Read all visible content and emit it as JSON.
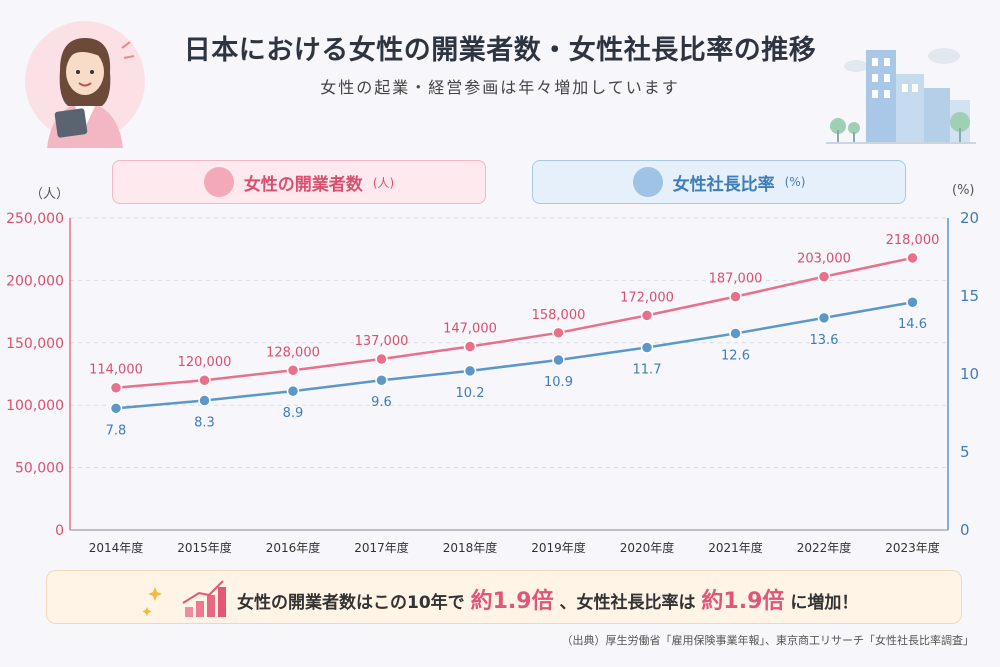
{
  "header": {
    "title": "日本における女性の開業者数・女性社長比率の推移",
    "subtitle": "女性の起業・経営参画は年々増加しています"
  },
  "legend": {
    "left": {
      "label": "女性の開業者数",
      "unit": "(人)"
    },
    "right": {
      "label": "女性社長比率",
      "unit": "(%)"
    }
  },
  "axis": {
    "left_unit": "（人）",
    "right_unit": "(%)"
  },
  "colors": {
    "pink": "#e8708a",
    "blue": "#5b97c9",
    "pink_text": "#d9506e",
    "blue_text": "#3f7db8"
  },
  "chart_data": {
    "type": "line",
    "categories": [
      "2014年度",
      "2015年度",
      "2016年度",
      "2017年度",
      "2018年度",
      "2019年度",
      "2020年度",
      "2021年度",
      "2022年度",
      "2023年度"
    ],
    "series": [
      {
        "name": "女性の開業者数",
        "axis": "left",
        "values": [
          114000,
          120000,
          128000,
          137000,
          147000,
          158000,
          172000,
          187000,
          203000,
          218000
        ],
        "labels": [
          "114,000",
          "120,000",
          "128,000",
          "137,000",
          "147,000",
          "158,000",
          "172,000",
          "187,000",
          "203,000",
          "218,000"
        ]
      },
      {
        "name": "女性社長比率",
        "axis": "right",
        "values": [
          7.8,
          8.3,
          8.9,
          9.6,
          10.2,
          10.9,
          11.7,
          12.6,
          13.6,
          14.6
        ],
        "labels": [
          "7.8",
          "8.3",
          "8.9",
          "9.6",
          "10.2",
          "10.9",
          "11.7",
          "12.6",
          "13.6",
          "14.6"
        ]
      }
    ],
    "y_left": {
      "range": [
        0,
        250000
      ],
      "ticks": [
        0,
        50000,
        100000,
        150000,
        200000,
        250000
      ],
      "tick_labels": [
        "0",
        "50,000",
        "100,000",
        "150,000",
        "200,000",
        "250,000"
      ]
    },
    "y_right": {
      "range": [
        0,
        20
      ],
      "ticks": [
        0,
        5,
        10,
        15,
        20
      ],
      "tick_labels": [
        "0",
        "5",
        "10",
        "15",
        "20"
      ]
    },
    "grid": true
  },
  "summary": {
    "part1": "女性の開業者数はこの10年で",
    "hl1": "約1.9倍",
    "part2": "、女性社長比率は",
    "hl2": "約1.9倍",
    "part3": "に増加！"
  },
  "source": "（出典）厚生労働省「雇用保険事業年報」、東京商工リサーチ「女性社長比率調査」"
}
